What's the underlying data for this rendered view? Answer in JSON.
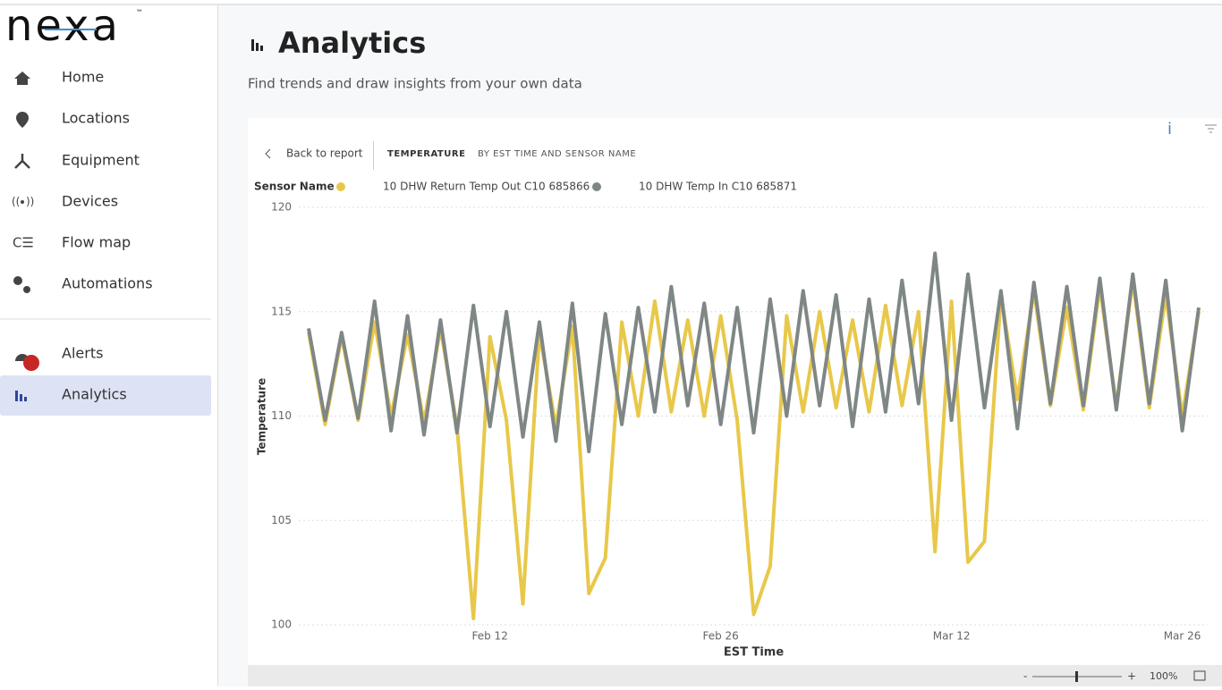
{
  "sidebar": {
    "logo": "nexa",
    "logo_mark": "™",
    "nav": [
      "Home",
      "Locations",
      "Equipment",
      "Devices",
      "Flow map",
      "Automations"
    ],
    "nav_bottom": [
      "Alerts",
      "Analytics"
    ]
  },
  "header": {
    "title": "Analytics",
    "subtitle": "Find trends and draw insights from your own data"
  },
  "toolbar": {
    "back": "Back to report",
    "field": "TEMPERATURE",
    "by": "BY EST TIME AND SENSOR NAME"
  },
  "chart_data": {
    "type": "line",
    "legend_title": "Sensor Name",
    "x_label": "EST Time",
    "y_label": "Temperature",
    "x": [
      "Feb 1",
      "Feb 2",
      "Feb 3",
      "Feb 4",
      "Feb 5",
      "Feb 6",
      "Feb 7",
      "Feb 8",
      "Feb 9",
      "Feb 10",
      "Feb 11",
      "Feb 12",
      "Feb 13",
      "Feb 14",
      "Feb 15",
      "Feb 16",
      "Feb 17",
      "Feb 18",
      "Feb 19",
      "Feb 20",
      "Feb 21",
      "Feb 22",
      "Feb 23",
      "Feb 24",
      "Feb 25",
      "Feb 26",
      "Feb 27",
      "Feb 28",
      "Mar 1",
      "Mar 2",
      "Mar 3",
      "Mar 4",
      "Mar 5",
      "Mar 6",
      "Mar 7",
      "Mar 8",
      "Mar 9",
      "Mar 10",
      "Mar 11",
      "Mar 12",
      "Mar 13",
      "Mar 14",
      "Mar 15",
      "Mar 16",
      "Mar 17",
      "Mar 18",
      "Mar 19",
      "Mar 20",
      "Mar 21",
      "Mar 22",
      "Mar 23",
      "Mar 24",
      "Mar 25",
      "Mar 26",
      "Mar 27"
    ],
    "series": [
      {
        "name": "10 DHW Return Temp Out C10 685866",
        "color": "#e8c84a",
        "values": [
          114,
          109.6,
          113.8,
          109.8,
          114.5,
          110,
          113.9,
          109.7,
          114.2,
          109.5,
          100.3,
          113.8,
          109.8,
          101,
          114,
          109.5,
          114.3,
          101.5,
          103.2,
          114.5,
          110,
          115.5,
          110.2,
          114.6,
          110,
          114.8,
          109.8,
          100.5,
          102.8,
          114.8,
          110.2,
          115,
          110.4,
          114.6,
          110.2,
          115.3,
          110.5,
          115,
          103.5,
          115.5,
          103,
          104,
          115.8,
          110.8,
          116,
          110.5,
          115.2,
          110.3,
          116.2,
          110.5,
          116.5,
          110.4,
          115.8,
          110,
          115
        ]
      },
      {
        "name": "10 DHW Temp In C10 685871",
        "color": "#7f8786",
        "values": [
          114.2,
          109.8,
          114,
          109.9,
          115.5,
          109.3,
          114.8,
          109.1,
          114.6,
          109.2,
          115.3,
          109.5,
          115,
          109,
          114.5,
          108.8,
          115.4,
          108.3,
          114.9,
          109.6,
          115.2,
          110.2,
          116.2,
          110.5,
          115.4,
          109.6,
          115.2,
          109.2,
          115.6,
          110,
          116,
          110.5,
          115.8,
          109.5,
          115.6,
          110.2,
          116.5,
          110.6,
          117.8,
          109.8,
          116.8,
          110.4,
          116,
          109.4,
          116.4,
          110.6,
          116.2,
          110.5,
          116.6,
          110.3,
          116.8,
          110.6,
          116.5,
          109.3,
          115.2
        ]
      }
    ],
    "xlim": [
      "Feb 1",
      "Mar 27"
    ],
    "xticks": [
      "Feb 12",
      "Feb 26",
      "Mar 12",
      "Mar 26"
    ],
    "ylim": [
      100,
      120
    ],
    "yticks": [
      100,
      105,
      110,
      115,
      120
    ],
    "grid": true
  },
  "footer": {
    "zoom": "100%",
    "minus": "-",
    "plus": "+"
  }
}
